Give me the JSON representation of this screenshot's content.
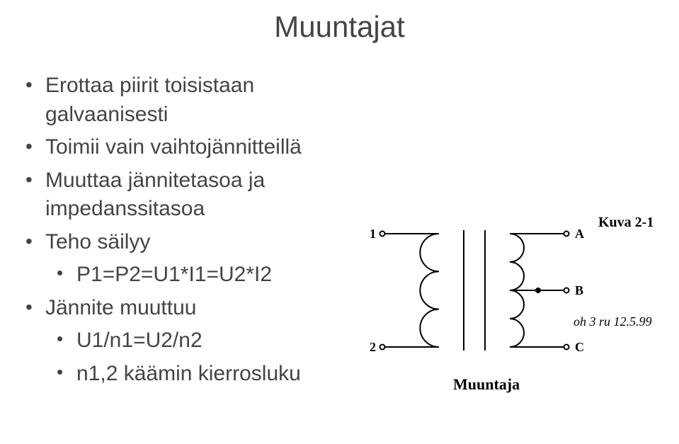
{
  "title": "Muuntajat",
  "bullets": {
    "b1": "Erottaa piirit toisistaan galvaanisesti",
    "b2": "Toimii vain vaihtojännitteillä",
    "b3": "Muuttaa jännitetasoa ja impedanssitasoa",
    "b4": "Teho säilyy",
    "b4a": "P1=P2=U1*I1=U2*I2",
    "b5": "Jännite muuttuu",
    "b5a": "U1/n1=U2/n2",
    "b5b": "n1,2 käämin kierrosluku"
  },
  "diagram": {
    "kuva_label": "Kuva 2-1",
    "terminals": {
      "t1": "1",
      "t2": "2",
      "ta": "A",
      "tb": "B",
      "tc": "C"
    },
    "signature": "oh 3 ru  12.5.99",
    "caption": "Muuntaja",
    "style": {
      "stroke_color": "#000000",
      "line_width": 2,
      "term_radius": 3.5,
      "dot_radius": 3,
      "font_bold_size": 20,
      "font_term_size": 18,
      "font_sig_size": 18,
      "font_caption_size": 22
    }
  }
}
